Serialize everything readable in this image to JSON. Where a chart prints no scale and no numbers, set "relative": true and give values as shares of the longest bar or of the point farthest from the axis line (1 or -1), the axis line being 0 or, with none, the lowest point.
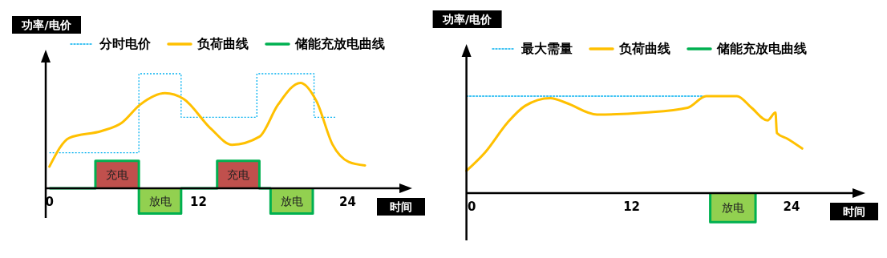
{
  "chart_data": [
    {
      "type": "line",
      "relative": true,
      "xlabel": "时间",
      "ylabel": "功率/电价",
      "xlim": [
        -0.3,
        28.3
      ],
      "xticks": [
        0,
        12,
        24
      ],
      "legend": "top",
      "series": [
        {
          "name": "分时电价",
          "type": "step",
          "color": "#00b0f0",
          "line_style": "dotted",
          "x": [
            0,
            7.2,
            10.6,
            16.7,
            21.3,
            23
          ],
          "values": [
            0.31,
            1,
            0.62,
            1,
            0.62,
            0.62
          ]
        },
        {
          "name": "负荷曲线",
          "color": "#ffc000",
          "x": [
            0,
            1.6,
            4.2,
            5.8,
            7.3,
            9.3,
            10.8,
            13.0,
            14.7,
            16.9,
            18.4,
            20.2,
            21.5,
            22.8,
            24.1,
            25.4
          ],
          "values": [
            0.19,
            0.44,
            0.5,
            0.57,
            0.73,
            0.83,
            0.78,
            0.52,
            0.38,
            0.45,
            0.73,
            0.92,
            0.76,
            0.38,
            0.23,
            0.2
          ]
        },
        {
          "name": "储能充放电曲线",
          "type": "step",
          "color": "#00b050",
          "x": [
            0,
            3.7,
            7.2,
            10.6,
            13.5,
            16.9,
            17.8,
            21.2
          ],
          "values": [
            0,
            0.24,
            -0.22,
            0,
            0.24,
            0,
            -0.22,
            0
          ],
          "colors": [
            null,
            "#c0504d",
            "#92d050",
            null,
            "#c0504d",
            null,
            "#92d050",
            null
          ]
        }
      ],
      "annotations": [
        "充电",
        "放电",
        "充电",
        "放电"
      ]
    },
    {
      "type": "line",
      "relative": true,
      "xlabel": "时间",
      "ylabel": "功率/电价",
      "xlim": [
        -0.4,
        28.7
      ],
      "xticks": [
        0,
        12,
        24
      ],
      "legend": "top",
      "series": [
        {
          "name": "最大需量",
          "type": "line",
          "color": "#00b0f0",
          "line_style": "dotted",
          "x": [
            -0.4,
            17.6
          ],
          "values": [
            1,
            1
          ]
        },
        {
          "name": "负荷曲线",
          "color": "#ffc000",
          "x": [
            -0.4,
            1.0,
            2.7,
            4.0,
            5.9,
            7.1,
            9.4,
            13.0,
            16.2,
            17.6,
            19.9,
            21.0,
            22.2,
            22.8,
            22.9,
            23.7,
            24.8
          ],
          "values": [
            0.23,
            0.42,
            0.73,
            0.9,
            0.98,
            0.93,
            0.81,
            0.83,
            0.88,
            1,
            1,
            0.88,
            0.75,
            0.83,
            0.62,
            0.56,
            0.46
          ]
        },
        {
          "name": "储能充放电曲线",
          "type": "step",
          "color": "#00b050",
          "x": [
            17.9,
            17.9,
            21.3
          ],
          "values": [
            0,
            -0.3,
            0
          ],
          "colors": [
            null,
            "#92d050",
            null
          ]
        }
      ],
      "annotations": [
        "放电"
      ]
    }
  ]
}
